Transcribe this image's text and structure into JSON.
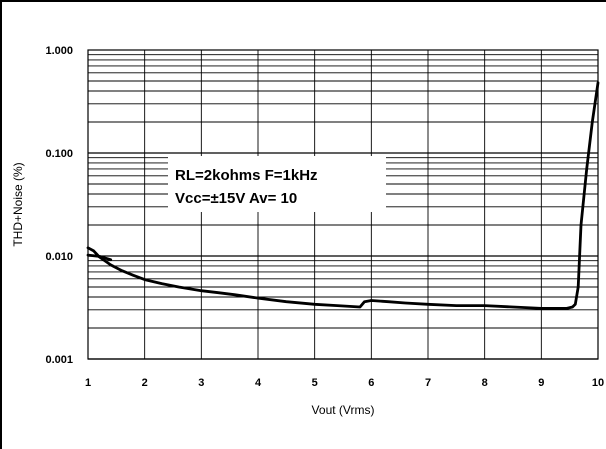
{
  "chart_data": {
    "type": "line",
    "title": "",
    "xlabel": "Vout (Vrms)",
    "ylabel": "THD+Noise (%)",
    "x_scale": "linear",
    "y_scale": "log",
    "xlim": [
      1,
      10
    ],
    "ylim": [
      0.001,
      1.0
    ],
    "x_ticks": [
      "1",
      "2",
      "3",
      "4",
      "5",
      "6",
      "7",
      "8",
      "9",
      "10"
    ],
    "y_ticks": [
      "0.001",
      "0.010",
      "0.100",
      "1.000"
    ],
    "grid": true,
    "annotation": {
      "line1": "RL=2kohms  F=1kHz",
      "line2": "Vcc=±15V  Av= 10"
    },
    "series": [
      {
        "color": "#000000",
        "x": [
          1.0,
          1.1,
          1.2,
          1.4,
          1.6,
          1.8,
          2.0,
          2.3,
          2.6,
          3.0,
          3.3,
          3.6,
          4.0,
          4.5,
          5.0,
          5.4,
          5.8,
          5.88,
          6.0,
          6.3,
          6.6,
          7.0,
          7.5,
          8.0,
          8.5,
          9.0,
          9.3,
          9.45,
          9.55,
          9.6,
          9.65,
          9.7,
          9.8,
          9.9,
          10.0
        ],
        "y": [
          0.012,
          0.0112,
          0.0098,
          0.0082,
          0.0072,
          0.0065,
          0.0059,
          0.0054,
          0.005,
          0.0046,
          0.0044,
          0.0042,
          0.0039,
          0.0036,
          0.0034,
          0.0033,
          0.0032,
          0.0036,
          0.0037,
          0.0036,
          0.0035,
          0.0034,
          0.0033,
          0.0033,
          0.0032,
          0.0031,
          0.0031,
          0.0031,
          0.0032,
          0.0034,
          0.005,
          0.02,
          0.07,
          0.2,
          0.48
        ]
      },
      {
        "color": "#000000",
        "x": [
          1.0,
          1.2,
          1.4
        ],
        "y": [
          0.0102,
          0.0099,
          0.0092
        ]
      }
    ]
  }
}
